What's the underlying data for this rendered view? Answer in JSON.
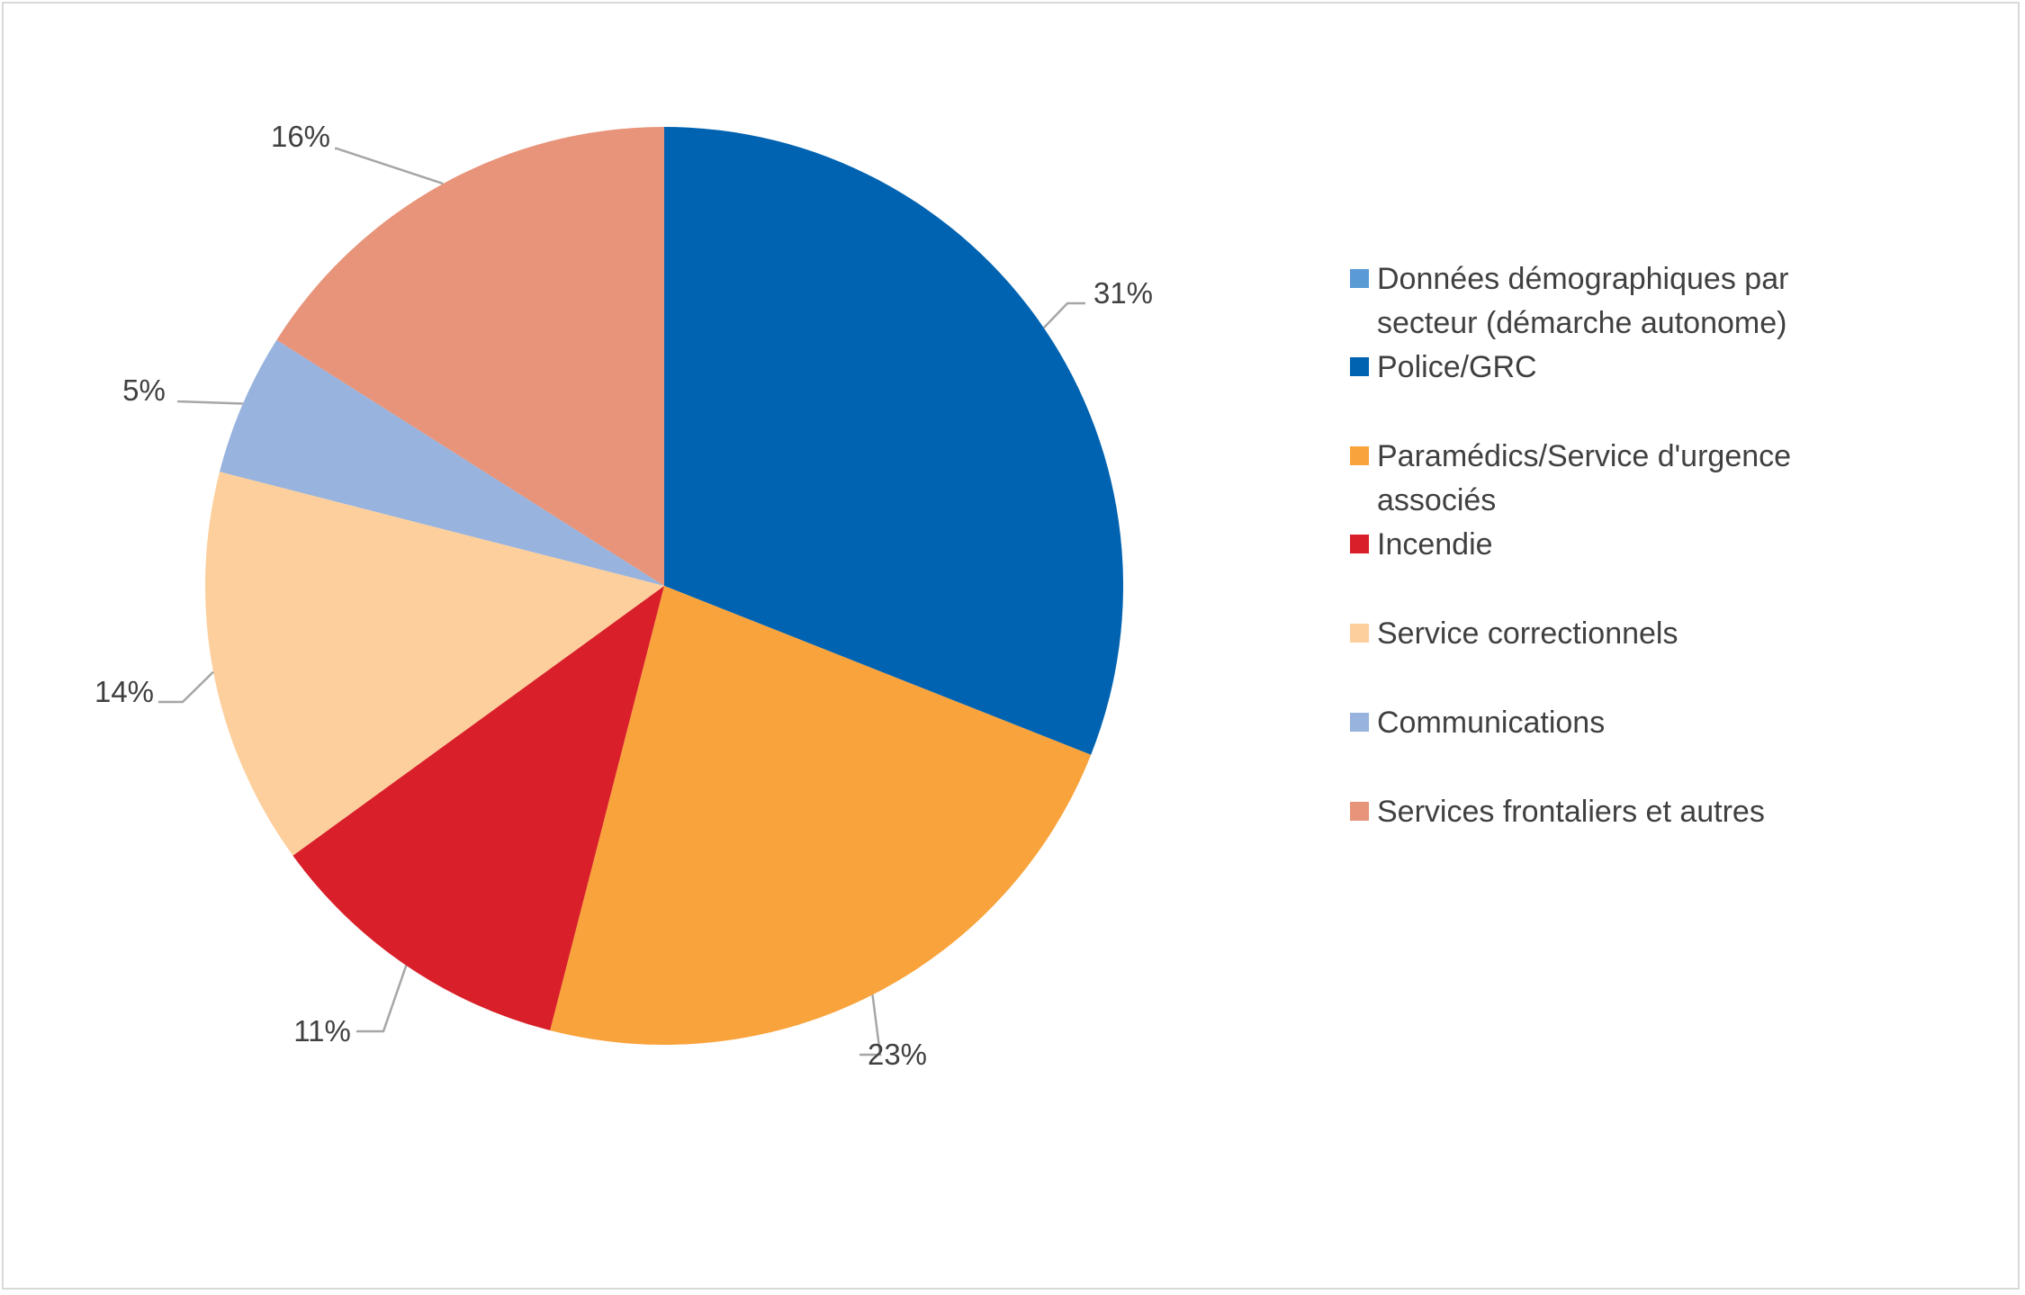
{
  "chart_data": {
    "type": "pie",
    "title": "",
    "categories": [
      "Données démographiques par secteur (démarche autonome)",
      "Police/GRC",
      "Paramédics/Service d'urgence associés",
      "Incendie",
      "Service correctionnels",
      "Communications",
      "Services frontaliers et autres"
    ],
    "values": [
      0,
      31,
      23,
      11,
      14,
      5,
      16
    ],
    "data_labels": [
      "",
      "31%",
      "23%",
      "11%",
      "14%",
      "5%",
      "16%"
    ],
    "colors": [
      "#5b9bd5",
      "#0063b1",
      "#f9a33c",
      "#d9202a",
      "#fdcf9c",
      "#98b3de",
      "#e8947a"
    ],
    "legend_position": "right"
  }
}
